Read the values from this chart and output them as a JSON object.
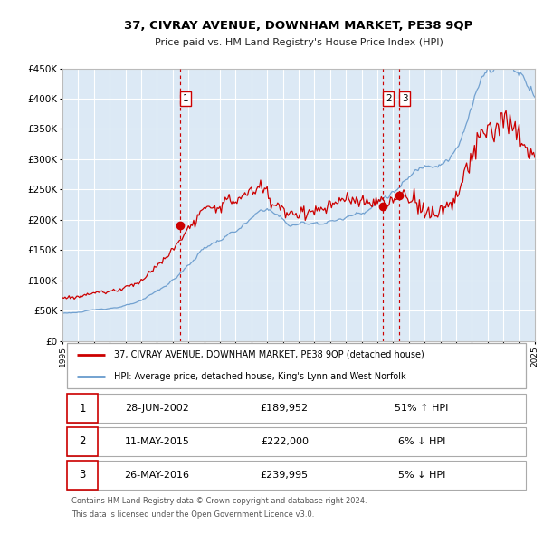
{
  "title": "37, CIVRAY AVENUE, DOWNHAM MARKET, PE38 9QP",
  "subtitle": "Price paid vs. HM Land Registry's House Price Index (HPI)",
  "legend_line1": "37, CIVRAY AVENUE, DOWNHAM MARKET, PE38 9QP (detached house)",
  "legend_line2": "HPI: Average price, detached house, King's Lynn and West Norfolk",
  "footer_line1": "Contains HM Land Registry data © Crown copyright and database right 2024.",
  "footer_line2": "This data is licensed under the Open Government Licence v3.0.",
  "transactions": [
    {
      "id": 1,
      "date": "28-JUN-2002",
      "price": "£189,952",
      "hpi": "51% ↑ HPI",
      "year": 2002.49
    },
    {
      "id": 2,
      "date": "11-MAY-2015",
      "price": "£222,000",
      "hpi": "6% ↓ HPI",
      "year": 2015.36
    },
    {
      "id": 3,
      "date": "26-MAY-2016",
      "price": "£239,995",
      "hpi": "5% ↓ HPI",
      "year": 2016.4
    }
  ],
  "transaction_prices": [
    189952,
    222000,
    239995
  ],
  "price_line_color": "#cc0000",
  "hpi_line_color": "#6699cc",
  "background_color": "#dce9f5",
  "plot_bg_color": "#dce9f5",
  "grid_color": "#ffffff",
  "vline_color": "#cc0000",
  "dot_color": "#cc0000",
  "ylim": [
    0,
    450000
  ],
  "yticks": [
    0,
    50000,
    100000,
    150000,
    200000,
    250000,
    300000,
    350000,
    400000,
    450000
  ],
  "xmin": 1995,
  "xmax": 2025
}
